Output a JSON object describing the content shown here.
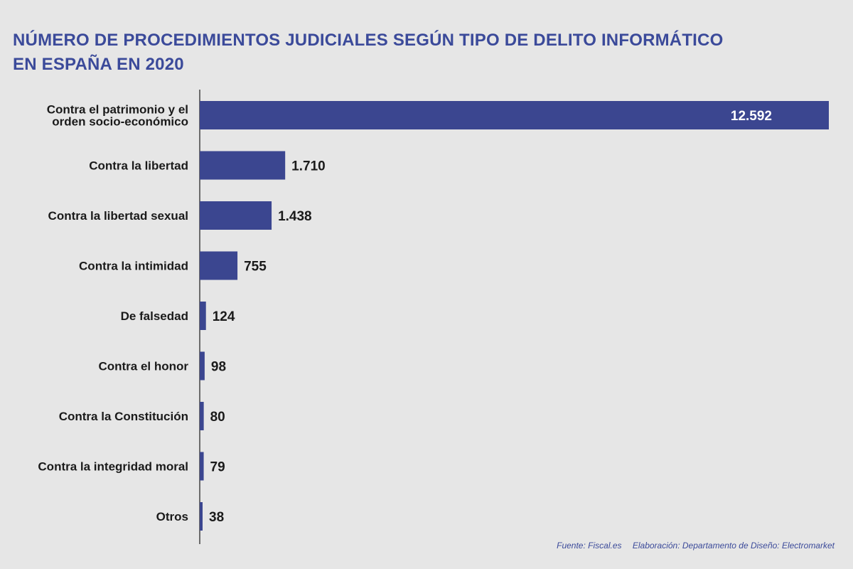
{
  "colors": {
    "background": "#e6e6e6",
    "bar": "#3b4690",
    "title": "#3b4a9a",
    "text": "#1a1a1a",
    "axis": "#1a1a1a"
  },
  "chart_data": {
    "type": "bar",
    "orientation": "horizontal",
    "title_lines": [
      "NÚMERO DE PROCEDIMIENTOS JUDICIALES SEGÚN TIPO DE DELITO INFORMÁTICO",
      "EN ESPAÑA EN 2020"
    ],
    "categories": [
      [
        "Contra el patrimonio y el",
        "orden socio-económico"
      ],
      [
        "Contra la libertad"
      ],
      [
        "Contra la libertad sexual"
      ],
      [
        "Contra la intimidad"
      ],
      [
        "De falsedad"
      ],
      [
        "Contra el honor"
      ],
      [
        "Contra la Constitución"
      ],
      [
        "Contra la integridad moral"
      ],
      [
        "Otros"
      ]
    ],
    "values": [
      12592,
      1710,
      1438,
      755,
      124,
      98,
      80,
      79,
      38
    ],
    "value_labels": [
      "12.592",
      "1.710",
      "1.438",
      "755",
      "124",
      "98",
      "80",
      "79",
      "38"
    ],
    "xlim": [
      0,
      12592
    ],
    "grid": false,
    "legend": "none"
  },
  "footer": {
    "source": "Fuente: Fiscal.es",
    "credit": "Elaboración: Departamento de Diseño: Electromarket"
  }
}
